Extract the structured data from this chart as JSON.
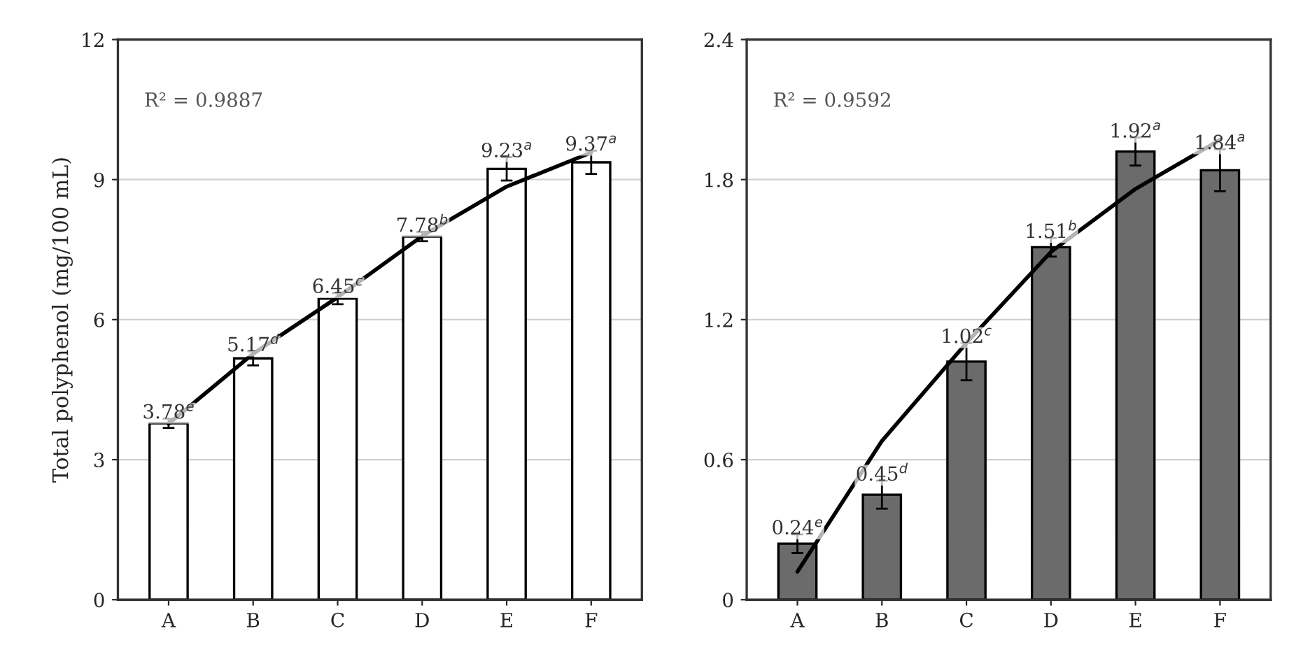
{
  "chart_data": [
    {
      "type": "bar",
      "ylabel": "Total polyphenol (mg/100 mL)",
      "categories": [
        "A",
        "B",
        "C",
        "D",
        "E",
        "F"
      ],
      "ylim": [
        0,
        12
      ],
      "yticks": [
        0,
        3,
        6,
        9,
        12
      ],
      "grid": "y",
      "legend": false,
      "annotations": [
        "R² = 0.9887"
      ],
      "series": [
        {
          "type": "bar",
          "color": "#ffffff",
          "values": [
            3.78,
            5.17,
            6.45,
            7.78,
            9.23,
            9.37
          ],
          "errors": [
            0.1,
            0.15,
            0.12,
            0.1,
            0.25,
            0.25
          ],
          "value_labels": [
            "3.78$^{e}$",
            "5.17$^{d}$",
            "6.45$^{c}$",
            "7.78$^{b}$",
            "9.23$^{a}$",
            "9.37$^{a}$"
          ]
        },
        {
          "type": "line",
          "color": "#000000",
          "values": [
            3.77,
            5.27,
            6.48,
            7.79,
            8.85,
            9.58
          ]
        }
      ]
    },
    {
      "type": "bar",
      "categories": [
        "A",
        "B",
        "C",
        "D",
        "E",
        "F"
      ],
      "ylim": [
        0,
        2.4
      ],
      "yticks": [
        0,
        0.6,
        1.2,
        1.8,
        2.4
      ],
      "grid": "y",
      "legend": false,
      "annotations": [
        "R² = 0.9592"
      ],
      "series": [
        {
          "type": "bar",
          "color": "#6b6b6b",
          "values": [
            0.24,
            0.45,
            1.02,
            1.51,
            1.92,
            1.84
          ],
          "errors": [
            0.04,
            0.06,
            0.08,
            0.04,
            0.06,
            0.09
          ],
          "value_labels": [
            "0.24$^{e}$",
            "0.45$^{d}$",
            "1.02$^{c}$",
            "1.51$^{b}$",
            "1.92$^{a}$",
            "1.84$^{a}$"
          ]
        },
        {
          "type": "line",
          "color": "#000000",
          "values": [
            0.12,
            0.68,
            1.1,
            1.49,
            1.76,
            1.97
          ]
        }
      ]
    }
  ]
}
